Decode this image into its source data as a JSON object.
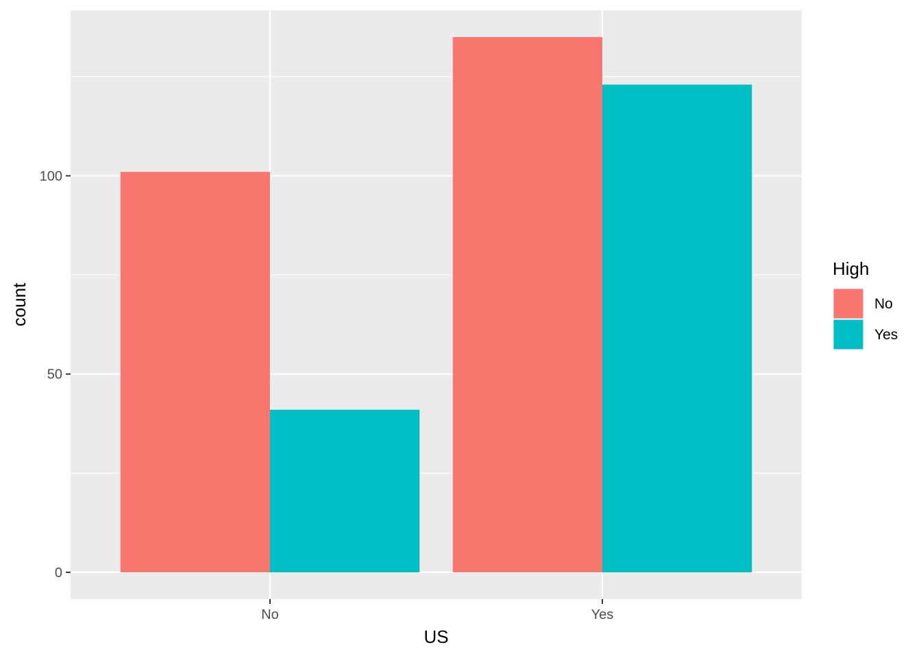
{
  "chart_data": {
    "type": "bar",
    "grouping": "dodge",
    "categories": [
      "No",
      "Yes"
    ],
    "series": [
      {
        "name": "No",
        "color": "#F8766D",
        "values": [
          101,
          135
        ]
      },
      {
        "name": "Yes",
        "color": "#00BFC4",
        "values": [
          41,
          123
        ]
      }
    ],
    "xlabel": "US",
    "ylabel": "count",
    "ylim": [
      -6.75,
      141.75
    ],
    "y_ticks": [
      0,
      50,
      100
    ],
    "y_tick_labels": [
      "0",
      "50",
      "100"
    ],
    "y_minor_ticks": [
      25,
      75,
      125
    ],
    "grid": true,
    "legend": {
      "title": "High",
      "position": "right",
      "labels": [
        "No",
        "Yes"
      ]
    },
    "panel_background": "#EBEBEB",
    "grid_color": "#FFFFFF"
  }
}
